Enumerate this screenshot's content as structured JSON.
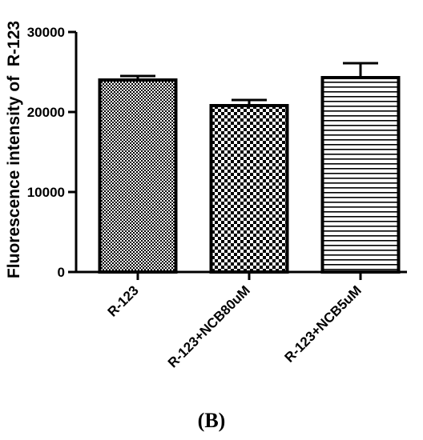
{
  "chart_data": {
    "type": "bar",
    "categories": [
      "R-123",
      "R-123+NCB80uM",
      "R-123+NCB5uM"
    ],
    "values": [
      24000,
      20800,
      24300
    ],
    "errors": [
      500,
      700,
      1800
    ],
    "patterns": [
      "fine-checker",
      "coarse-checker",
      "horizontal-lines"
    ],
    "ylabel": "Fluorescence intensity of  R-123",
    "xlabel": "",
    "title": "",
    "ylim": [
      0,
      30000
    ],
    "yticks": [
      0,
      10000,
      20000,
      30000
    ],
    "ytick_labels": [
      "0",
      "10000",
      "20000",
      "30000"
    ],
    "grid": false,
    "legend": "none"
  },
  "caption": "(B)"
}
